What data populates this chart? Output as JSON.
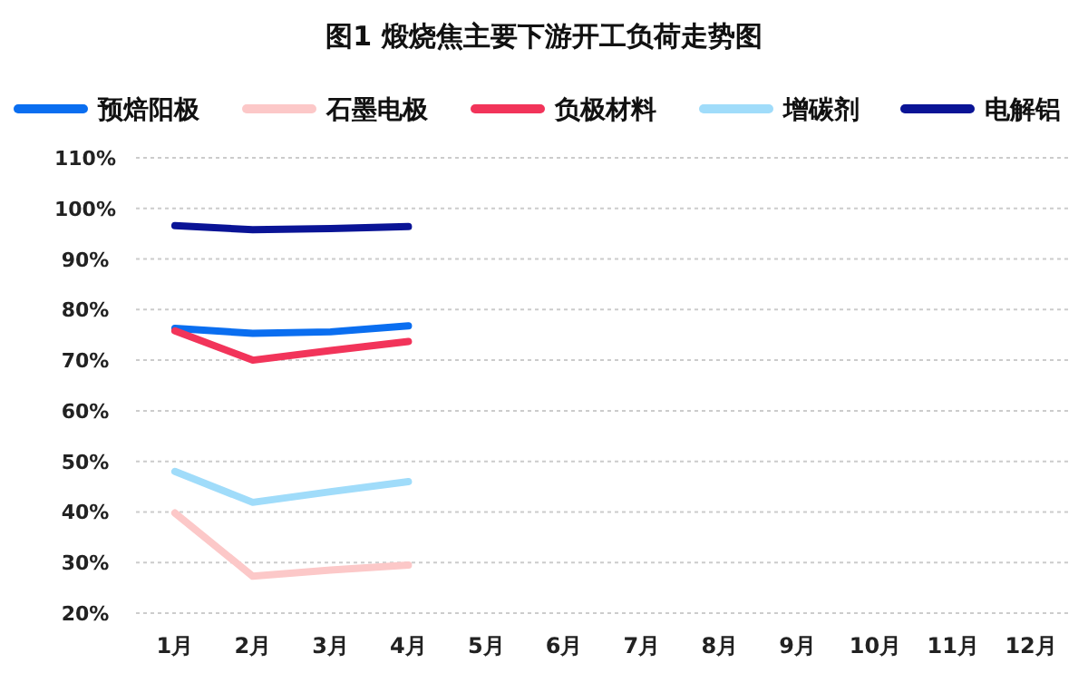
{
  "chart_data": {
    "type": "line",
    "title": "图1  煅烧焦主要下游开工负荷走势图",
    "categories": [
      "1月",
      "2月",
      "3月",
      "4月",
      "5月",
      "6月",
      "7月",
      "8月",
      "9月",
      "10月",
      "11月",
      "12月"
    ],
    "series": [
      {
        "name": "预焙阳极",
        "color": "#0a6ef0",
        "values": [
          76.3,
          75.3,
          75.6,
          76.8,
          null,
          null,
          null,
          null,
          null,
          null,
          null,
          null
        ]
      },
      {
        "name": "石墨电极",
        "color": "#fcc8c8",
        "values": [
          39.8,
          27.3,
          28.5,
          29.5,
          null,
          null,
          null,
          null,
          null,
          null,
          null,
          null
        ]
      },
      {
        "name": "负极材料",
        "color": "#f2345a",
        "values": [
          75.8,
          70.0,
          71.9,
          73.7,
          null,
          null,
          null,
          null,
          null,
          null,
          null,
          null
        ]
      },
      {
        "name": "增碳剂",
        "color": "#a0dcfa",
        "values": [
          48.0,
          41.9,
          44.0,
          46.0,
          null,
          null,
          null,
          null,
          null,
          null,
          null,
          null
        ]
      },
      {
        "name": "电解铝",
        "color": "#0a1496",
        "values": [
          96.6,
          95.8,
          96.0,
          96.4,
          null,
          null,
          null,
          null,
          null,
          null,
          null,
          null
        ]
      }
    ],
    "ylim": [
      20,
      110
    ],
    "yticks": [
      {
        "value": 20,
        "label": "20%"
      },
      {
        "value": 30,
        "label": "30%"
      },
      {
        "value": 40,
        "label": "40%"
      },
      {
        "value": 50,
        "label": "50%"
      },
      {
        "value": 60,
        "label": "60%"
      },
      {
        "value": 70,
        "label": "70%"
      },
      {
        "value": 80,
        "label": "80%"
      },
      {
        "value": 90,
        "label": "90%"
      },
      {
        "value": 100,
        "label": "100%"
      },
      {
        "value": 110,
        "label": "110%"
      }
    ],
    "grid": "y",
    "legend": "top",
    "marker": "none",
    "line_style": "solid"
  }
}
